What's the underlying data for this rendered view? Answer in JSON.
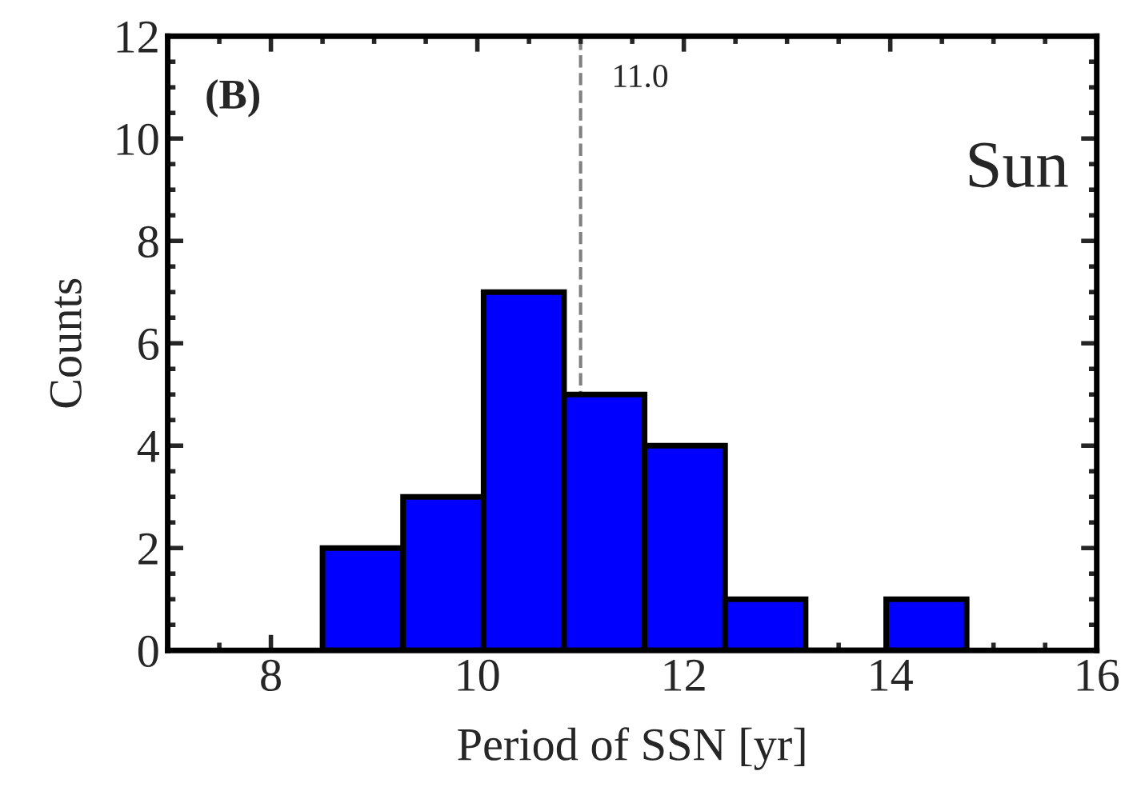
{
  "chart_data": {
    "type": "histogram",
    "xlabel": "Period of SSN [yr]",
    "ylabel": "Counts",
    "bins": [
      8.5,
      9.28,
      10.06,
      10.84,
      11.62,
      12.4,
      13.18,
      13.96,
      14.74
    ],
    "values": [
      2,
      3,
      7,
      5,
      4,
      1,
      0,
      1
    ],
    "color": "#0000ff",
    "xlim": [
      7,
      16
    ],
    "xticks": [
      8,
      10,
      12,
      14,
      16
    ],
    "ylim": [
      0,
      12
    ],
    "yticks": [
      0,
      2,
      4,
      6,
      8,
      10,
      12
    ],
    "ref_lines": [
      {
        "axis": "x",
        "value": 11.0,
        "label": "11.0",
        "line_style": "dashed",
        "color": "#808080"
      }
    ],
    "annotations": [
      "(B)",
      "Sun"
    ],
    "grid": false,
    "legend": false
  }
}
